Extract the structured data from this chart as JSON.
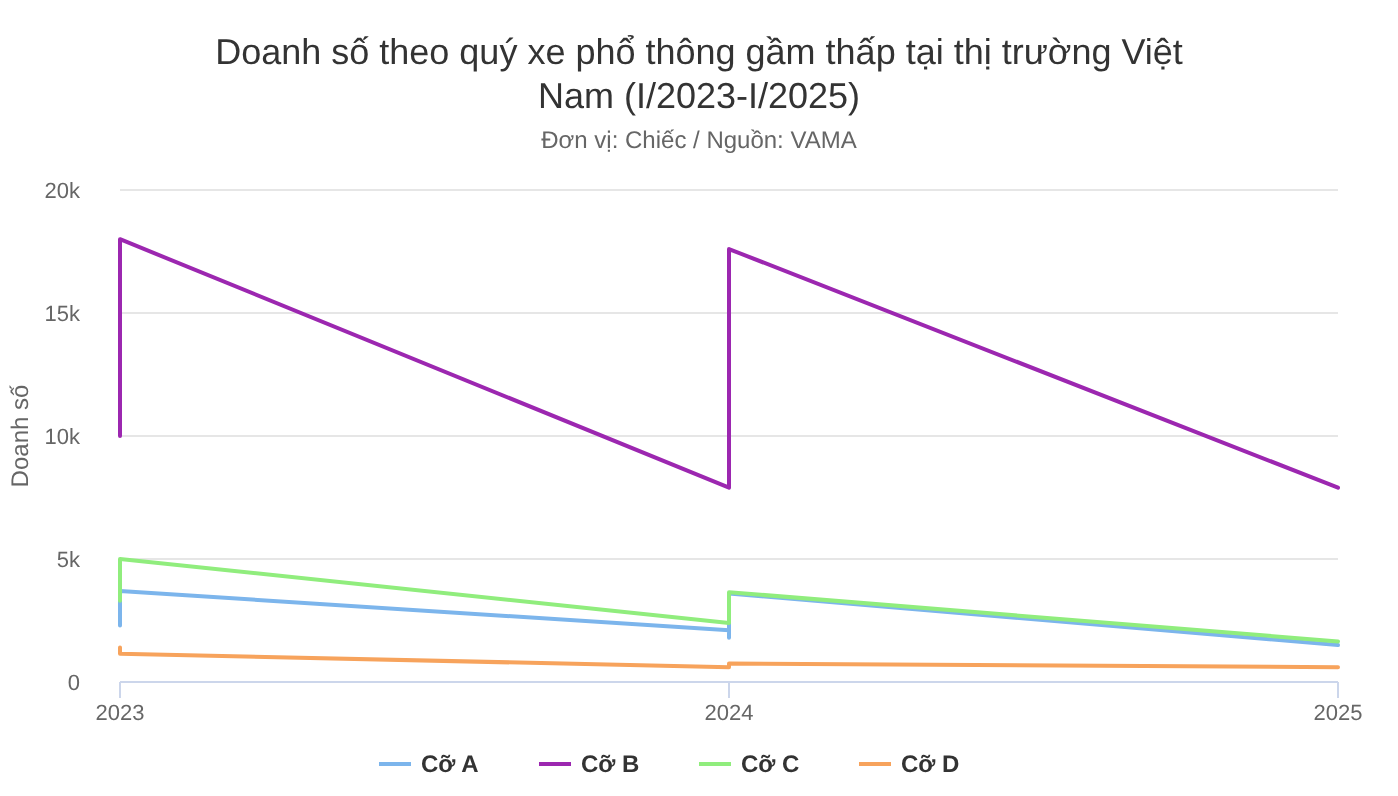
{
  "chart_data": {
    "type": "line",
    "title": "Doanh số theo quý xe phổ thông gầm thấp tại thị trường Việt Nam (I/2023-I/2025)",
    "subtitle": "Đơn vị: Chiếc / Nguồn: VAMA",
    "ylabel": "Doanh số",
    "xlim": [
      2023,
      2025
    ],
    "xticks": [
      2023,
      2024,
      2025
    ],
    "ylim": [
      0,
      20000
    ],
    "yticks": [
      {
        "value": 0,
        "label": "0"
      },
      {
        "value": 5000,
        "label": "5k"
      },
      {
        "value": 10000,
        "label": "10k"
      },
      {
        "value": 15000,
        "label": "15k"
      },
      {
        "value": 20000,
        "label": "20k"
      }
    ],
    "grid": "y",
    "legend": "bottom",
    "line_style": "solid",
    "series": [
      {
        "name": "Cỡ A",
        "color": "#7cb5ec",
        "x": [
          2023,
          2023,
          2024,
          2024,
          2024,
          2025
        ],
        "values": [
          2300,
          3700,
          2100,
          1800,
          3600,
          1500
        ]
      },
      {
        "name": "Cỡ B",
        "color": "#9c27b0",
        "x": [
          2023,
          2023,
          2024,
          2024,
          2025
        ],
        "values": [
          10000,
          18000,
          7900,
          17600,
          7900
        ]
      },
      {
        "name": "Cỡ C",
        "color": "#90ed7d",
        "x": [
          2023,
          2023,
          2024,
          2024,
          2025
        ],
        "values": [
          3300,
          5000,
          2400,
          3650,
          1650
        ]
      },
      {
        "name": "Cỡ D",
        "color": "#f7a35c",
        "x": [
          2023,
          2023,
          2024,
          2024,
          2025
        ],
        "values": [
          1400,
          1150,
          600,
          750,
          600
        ]
      }
    ]
  }
}
